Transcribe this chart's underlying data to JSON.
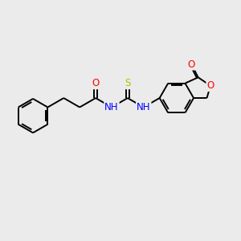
{
  "background_color": "#ebebeb",
  "bond_color": "#000000",
  "bond_width": 1.4,
  "atom_colors": {
    "O": "#ff0000",
    "N": "#0000ff",
    "S": "#cccc00",
    "C": "#000000"
  },
  "font_size": 8.5,
  "fig_size": [
    3.0,
    3.0
  ],
  "dpi": 100,
  "xlim": [
    0,
    10
  ],
  "ylim": [
    0,
    10
  ]
}
